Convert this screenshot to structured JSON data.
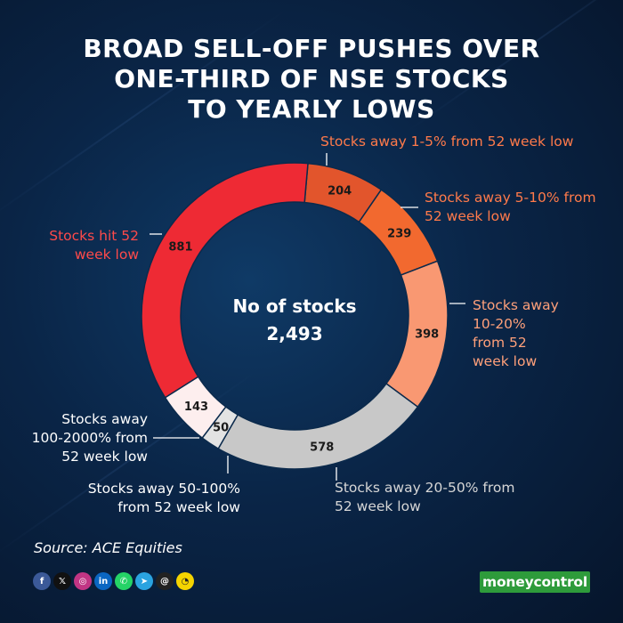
{
  "title_lines": [
    "BROAD SELL-OFF PUSHES OVER",
    "ONE-THIRD OF NSE STOCKS",
    "TO YEARLY LOWS"
  ],
  "center": {
    "line1": "No of stocks",
    "line2": "2,493"
  },
  "source": "Source: ACE Equities",
  "brand": "moneycontrol",
  "social_icons": [
    "facebook-icon",
    "x-icon",
    "instagram-icon",
    "linkedin-icon",
    "whatsapp-icon",
    "telegram-icon",
    "threads-icon",
    "snapchat-icon"
  ],
  "chart_data": {
    "type": "pie",
    "total": 2493,
    "series": [
      {
        "name": "Stocks away 1-5% from 52 week low",
        "value": 204,
        "label": "204",
        "color": "#e2552c"
      },
      {
        "name": "Stocks away 5-10% from 52 week low",
        "value": 239,
        "label": "239",
        "color": "#f2692f"
      },
      {
        "name": "Stocks away 10-20% from 52 week low",
        "value": 398,
        "label": "398",
        "color": "#f99872"
      },
      {
        "name": "Stocks away 20-50% from 52 week low",
        "value": 578,
        "label": "578",
        "color": "#c8c8c8"
      },
      {
        "name": "Stocks away 50-100% from 52 week low",
        "value": 50,
        "label": "50",
        "color": "#e3e3e3"
      },
      {
        "name": "Stocks away 100-2000% from 52 week low",
        "value": 143,
        "label": "143",
        "color": "#fdeeee"
      },
      {
        "name": "Stocks hit 52 week low",
        "value": 881,
        "label": "881",
        "color": "#ee2a34"
      }
    ],
    "callouts": [
      {
        "lines": [
          "Stocks away 1-5% from 52 week low"
        ],
        "color": "#ff7a4a"
      },
      {
        "lines": [
          "Stocks away 5-10% from",
          "52 week low"
        ],
        "color": "#ff7a4a"
      },
      {
        "lines": [
          "Stocks away",
          "10-20%",
          "from 52",
          "week low"
        ],
        "color": "#ffa07a"
      },
      {
        "lines": [
          "Stocks away 20-50% from",
          "52 week low"
        ],
        "color": "#d6d6d6"
      },
      {
        "lines": [
          "Stocks away 50-100%",
          "from 52 week low"
        ],
        "color": "#ffffff"
      },
      {
        "lines": [
          "Stocks away",
          "100-2000% from",
          "52 week low"
        ],
        "color": "#ffffff"
      },
      {
        "lines": [
          "Stocks hit 52",
          "week low"
        ],
        "color": "#ff4a4a"
      }
    ]
  }
}
